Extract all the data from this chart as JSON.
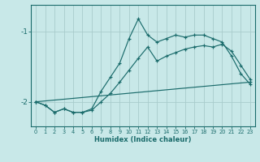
{
  "xlabel": "Humidex (Indice chaleur)",
  "bg_color": "#c8e8e8",
  "grid_color": "#a8cccc",
  "line_color": "#1a6b6b",
  "xlim": [
    -0.5,
    23.5
  ],
  "ylim": [
    -2.35,
    -0.62
  ],
  "yticks": [
    -2,
    -1
  ],
  "xticks": [
    0,
    1,
    2,
    3,
    4,
    5,
    6,
    7,
    8,
    9,
    10,
    11,
    12,
    13,
    14,
    15,
    16,
    17,
    18,
    19,
    20,
    21,
    22,
    23
  ],
  "line1_x": [
    0,
    1,
    2,
    3,
    4,
    5,
    6,
    7,
    8,
    9,
    10,
    11,
    12,
    13,
    14,
    15,
    16,
    17,
    18,
    19,
    20,
    21,
    22,
    23
  ],
  "line1_y": [
    -2.0,
    -2.05,
    -2.15,
    -2.1,
    -2.15,
    -2.15,
    -2.1,
    -1.85,
    -1.65,
    -1.45,
    -1.1,
    -0.82,
    -1.05,
    -1.15,
    -1.1,
    -1.05,
    -1.08,
    -1.05,
    -1.05,
    -1.1,
    -1.15,
    -1.35,
    -1.6,
    -1.75
  ],
  "line2_x": [
    0,
    1,
    2,
    3,
    4,
    5,
    6,
    7,
    8,
    9,
    10,
    11,
    12,
    13,
    14,
    15,
    16,
    17,
    18,
    19,
    20,
    21,
    22,
    23
  ],
  "line2_y": [
    -2.0,
    -2.05,
    -2.15,
    -2.1,
    -2.15,
    -2.15,
    -2.12,
    -2.0,
    -1.88,
    -1.72,
    -1.55,
    -1.38,
    -1.22,
    -1.42,
    -1.35,
    -1.3,
    -1.25,
    -1.22,
    -1.2,
    -1.22,
    -1.18,
    -1.28,
    -1.48,
    -1.68
  ],
  "line3_x": [
    0,
    23
  ],
  "line3_y": [
    -2.0,
    -1.72
  ]
}
